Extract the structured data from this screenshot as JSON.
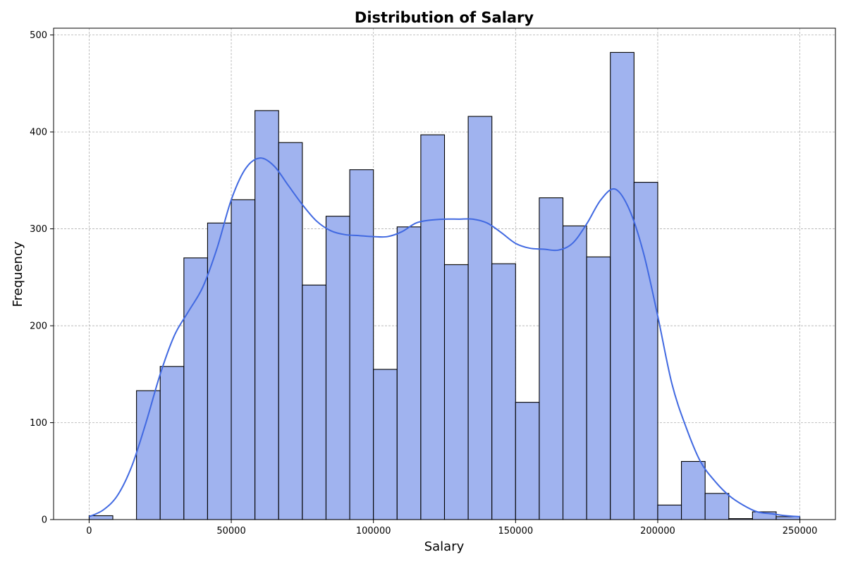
{
  "chart_data": {
    "type": "bar",
    "title": "Distribution of Salary",
    "xlabel": "Salary",
    "ylabel": "Frequency",
    "xlim": [
      -12500,
      262500
    ],
    "ylim": [
      0,
      507
    ],
    "xticks": [
      0,
      50000,
      100000,
      150000,
      200000,
      250000
    ],
    "yticks": [
      0,
      100,
      200,
      300,
      400,
      500
    ],
    "grid": true,
    "colors": {
      "bar_fill": "#a0b3ef",
      "bar_edge": "#000000",
      "kde": "#4169e1"
    },
    "bins": {
      "start": 0,
      "width": 8333.33,
      "counts": [
        4,
        0,
        133,
        158,
        270,
        306,
        330,
        422,
        389,
        242,
        313,
        361,
        155,
        302,
        397,
        263,
        416,
        264,
        121,
        332,
        303,
        271,
        482,
        348,
        15,
        60,
        27,
        1,
        8,
        3
      ]
    },
    "kde": {
      "x": [
        0,
        5000,
        10000,
        15000,
        20000,
        25000,
        30000,
        35000,
        40000,
        45000,
        50000,
        55000,
        60000,
        65000,
        70000,
        75000,
        80000,
        85000,
        90000,
        95000,
        100000,
        105000,
        110000,
        115000,
        120000,
        125000,
        130000,
        135000,
        140000,
        145000,
        150000,
        155000,
        160000,
        165000,
        170000,
        175000,
        180000,
        185000,
        190000,
        195000,
        200000,
        205000,
        210000,
        215000,
        220000,
        225000,
        230000,
        235000,
        240000,
        245000,
        250000
      ],
      "y": [
        3,
        10,
        25,
        55,
        100,
        150,
        190,
        215,
        240,
        280,
        330,
        362,
        373,
        365,
        345,
        325,
        308,
        298,
        294,
        293,
        292,
        292,
        297,
        306,
        309,
        310,
        310,
        310,
        306,
        296,
        285,
        280,
        279,
        278,
        285,
        305,
        330,
        341,
        320,
        275,
        210,
        140,
        95,
        60,
        40,
        25,
        15,
        8,
        6,
        4,
        3
      ]
    }
  }
}
